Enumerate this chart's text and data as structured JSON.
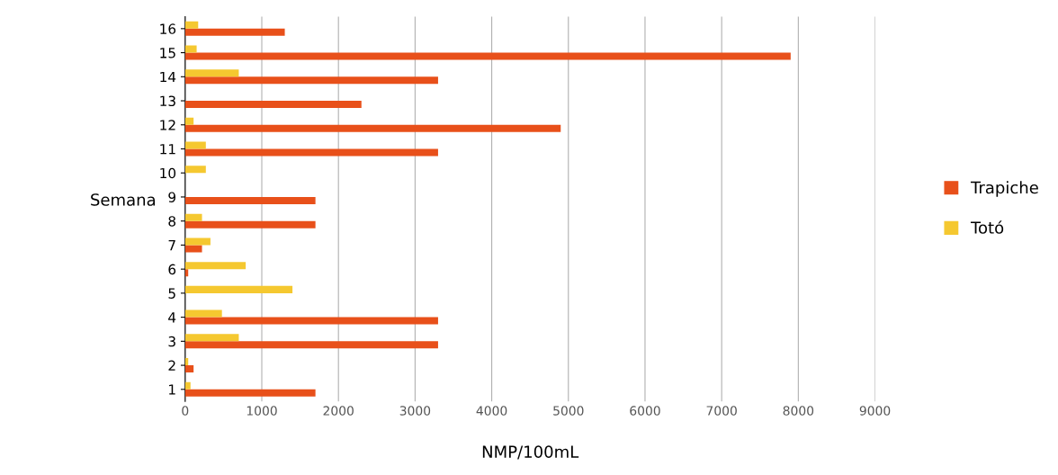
{
  "chart_data": {
    "type": "bar",
    "orientation": "horizontal",
    "ylabel": "Semana",
    "xlabel": "NMP/100mL",
    "categories": [
      "16",
      "15",
      "14",
      "13",
      "12",
      "11",
      "10",
      "9",
      "8",
      "7",
      "6",
      "5",
      "4",
      "3",
      "2",
      "1"
    ],
    "series": [
      {
        "name": "Trapiche",
        "color": "#e8501a",
        "values": [
          1300,
          7900,
          3300,
          2300,
          4900,
          3300,
          0,
          1700,
          1700,
          220,
          40,
          0,
          3300,
          3300,
          110,
          1700
        ]
      },
      {
        "name": "Totó",
        "color": "#f5c830",
        "values": [
          170,
          150,
          700,
          0,
          110,
          270,
          270,
          0,
          220,
          330,
          790,
          1400,
          480,
          700,
          40,
          70
        ]
      }
    ],
    "xlim": [
      0,
      9000
    ],
    "xticks": [
      0,
      1000,
      2000,
      3000,
      4000,
      5000,
      6000,
      7000,
      8000,
      9000
    ],
    "grid": "x",
    "legend": "right"
  }
}
